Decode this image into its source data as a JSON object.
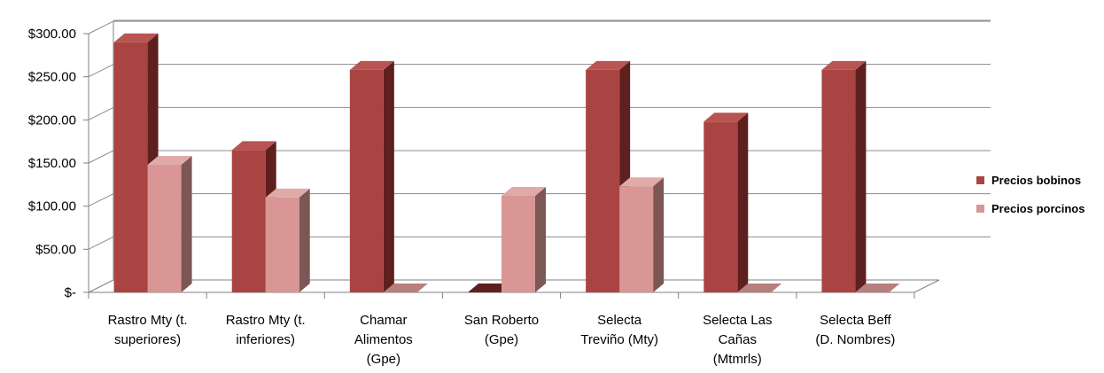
{
  "chart_data": {
    "type": "bar",
    "categories": [
      "Rastro Mty (t. superiores)",
      "Rastro Mty (t. inferiores)",
      "Chamar Alimentos (Gpe)",
      "San Roberto (Gpe)",
      "Selecta Treviño (Mty)",
      "Selecta Las Cañas (Mtmrls)",
      "Selecta Beff (D. Nombres)"
    ],
    "category_lines": [
      [
        "Rastro Mty (t.",
        "superiores)"
      ],
      [
        "Rastro Mty (t.",
        "inferiores)"
      ],
      [
        "Chamar",
        "Alimentos",
        "(Gpe)"
      ],
      [
        "San Roberto",
        "(Gpe)"
      ],
      [
        "Selecta",
        "Treviño (Mty)"
      ],
      [
        "Selecta Las",
        "Cañas",
        "(Mtmrls)"
      ],
      [
        "Selecta Beff",
        "(D. Nombres)"
      ]
    ],
    "series": [
      {
        "name": "Precios bobinos",
        "values": [
          290,
          165,
          258,
          0,
          258,
          198,
          258
        ]
      },
      {
        "name": "Precios porcinos",
        "values": [
          148,
          110,
          0,
          112,
          123,
          0,
          0
        ]
      }
    ],
    "ylim": [
      0,
      300
    ],
    "yticks": [
      {
        "value": 0,
        "label": "$-"
      },
      {
        "value": 50,
        "label": "$50.00"
      },
      {
        "value": 100,
        "label": "$100.00"
      },
      {
        "value": 150,
        "label": "$150.00"
      },
      {
        "value": 200,
        "label": "$200.00"
      },
      {
        "value": 250,
        "label": "$250.00"
      },
      {
        "value": 300,
        "label": "$300.00"
      }
    ],
    "grid": true,
    "style": "3d",
    "legend_position": "right",
    "colors": {
      "series": [
        "#a94442",
        "#d99694"
      ],
      "series_top": [
        "#b85452",
        "#e0aaa8"
      ],
      "series_side": [
        "#5e1f1f",
        "#7d5656"
      ],
      "grid": "#8c8c8c",
      "axis": "#808080"
    }
  }
}
